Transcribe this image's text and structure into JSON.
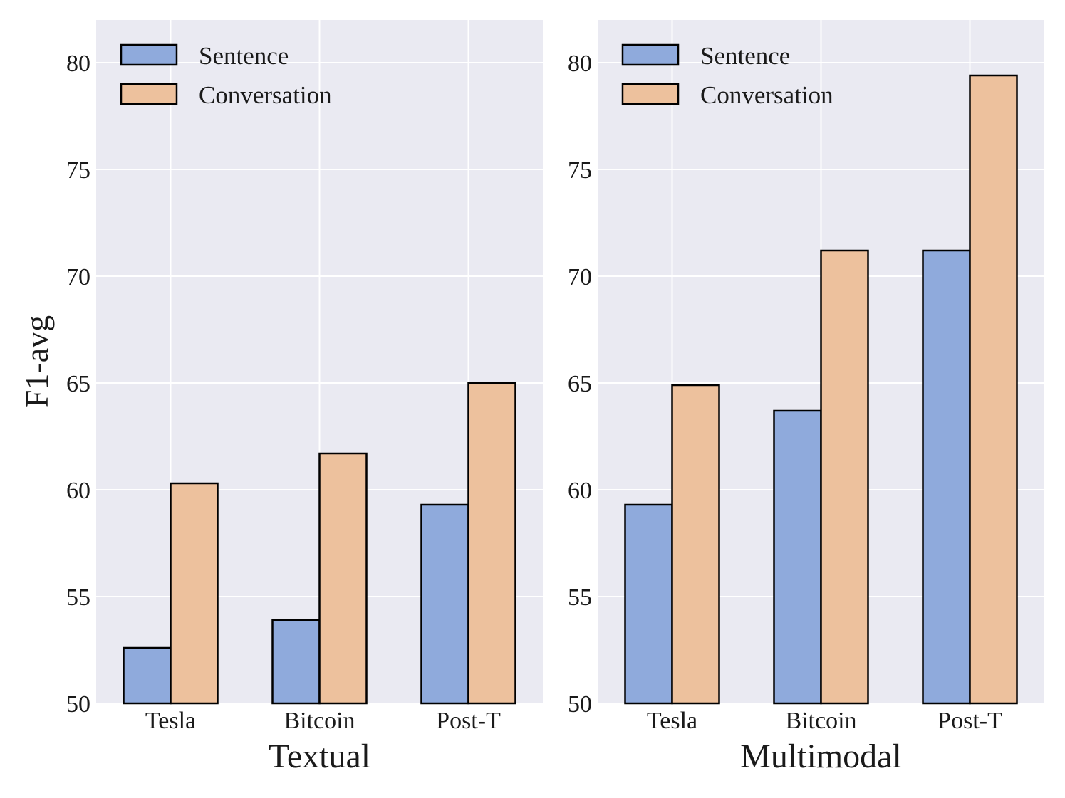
{
  "chart_data": [
    {
      "type": "bar",
      "categories": [
        "Tesla",
        "Bitcoin",
        "Post-T"
      ],
      "series": [
        {
          "name": "Sentence",
          "values": [
            52.6,
            53.9,
            59.3
          ]
        },
        {
          "name": "Conversation",
          "values": [
            60.3,
            61.7,
            65.0
          ]
        }
      ],
      "title": "",
      "xlabel": "Textual",
      "ylabel": "F1-avg",
      "ylim": [
        50,
        82
      ],
      "yticks": [
        "50",
        "55",
        "60",
        "65",
        "70",
        "75",
        "80"
      ],
      "grid": true,
      "legend": "top-left"
    },
    {
      "type": "bar",
      "categories": [
        "Tesla",
        "Bitcoin",
        "Post-T"
      ],
      "series": [
        {
          "name": "Sentence",
          "values": [
            59.3,
            63.7,
            71.2
          ]
        },
        {
          "name": "Conversation",
          "values": [
            64.9,
            71.2,
            79.4
          ]
        }
      ],
      "title": "",
      "xlabel": "Multimodal",
      "ylabel": "",
      "ylim": [
        50,
        82
      ],
      "yticks": [
        "50",
        "55",
        "60",
        "65",
        "70",
        "75",
        "80"
      ],
      "grid": true,
      "legend": "top-left"
    }
  ],
  "colors": {
    "plot_background": "#EAEAF2",
    "grid": "#FFFFFF",
    "sentence": "#8FAADC",
    "conversation": "#EDC19D",
    "bar_edge": "#000000"
  }
}
